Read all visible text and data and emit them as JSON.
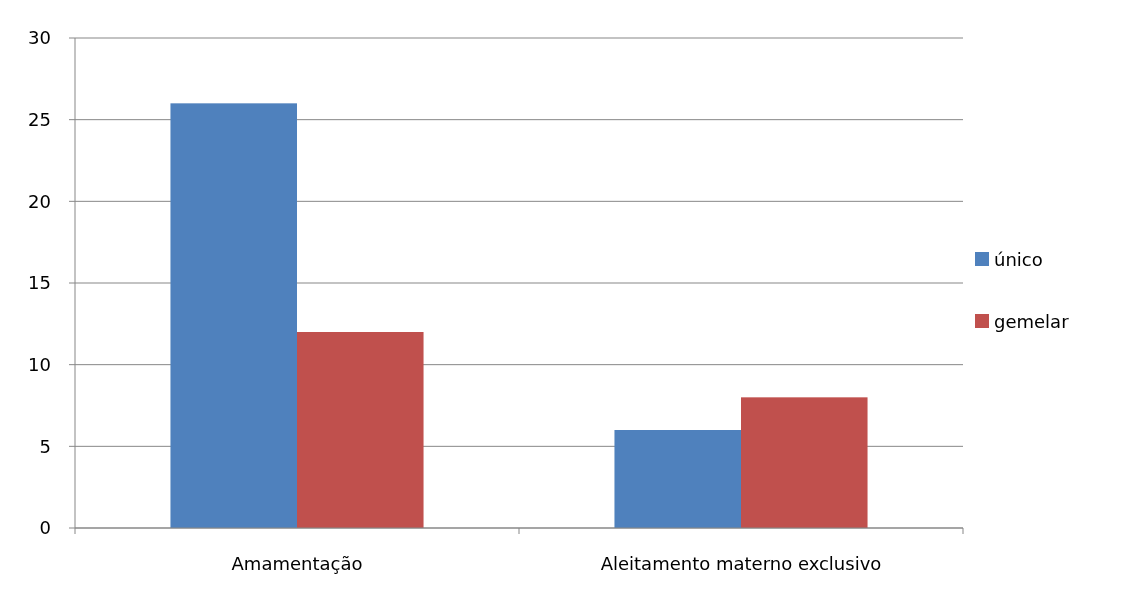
{
  "chart_data": {
    "type": "bar",
    "categories": [
      "Amamentação",
      "Aleitamento materno exclusivo"
    ],
    "series": [
      {
        "name": "único",
        "color": "#4f81bd",
        "values": [
          26,
          6
        ]
      },
      {
        "name": "gemelar",
        "color": "#c0504d",
        "values": [
          12,
          8
        ]
      }
    ],
    "ylim": [
      0,
      30
    ],
    "yticks": [
      0,
      5,
      10,
      15,
      20,
      25,
      30
    ],
    "grid": "y",
    "legend": "right"
  }
}
